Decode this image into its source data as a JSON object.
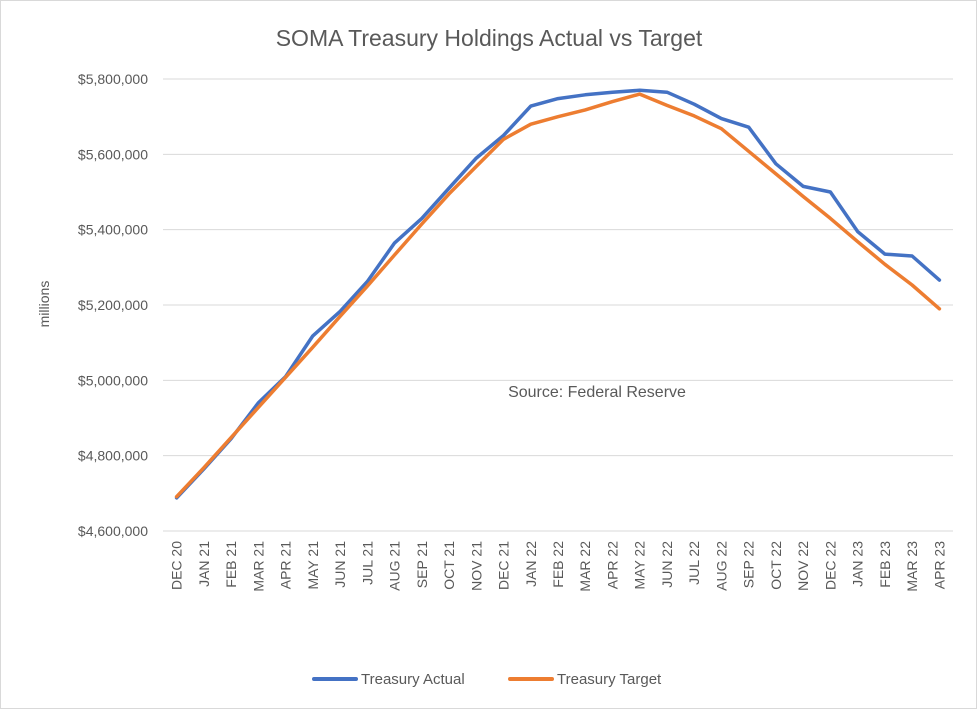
{
  "chart_data": {
    "type": "line",
    "title": "SOMA Treasury Holdings Actual vs Target",
    "xlabel": "",
    "ylabel": "millions",
    "annotation": "Source: Federal Reserve",
    "legend_position": "bottom",
    "grid": true,
    "ylim": [
      4600000,
      5800000
    ],
    "yticks": [
      4600000,
      4800000,
      5000000,
      5200000,
      5400000,
      5600000,
      5800000
    ],
    "ytick_labels": [
      "$4,600,000",
      "$4,800,000",
      "$5,000,000",
      "$5,200,000",
      "$5,400,000",
      "$5,600,000",
      "$5,800,000"
    ],
    "categories": [
      "DEC 20",
      "JAN 21",
      "FEB 21",
      "MAR 21",
      "APR 21",
      "MAY 21",
      "JUN 21",
      "JUL 21",
      "AUG 21",
      "SEP 21",
      "OCT 21",
      "NOV 21",
      "DEC 21",
      "JAN 22",
      "FEB 22",
      "MAR 22",
      "APR 22",
      "MAY 22",
      "JUN 22",
      "JUL 22",
      "AUG 22",
      "SEP 22",
      "OCT 22",
      "NOV 22",
      "DEC 22",
      "JAN 23",
      "FEB 23",
      "MAR 23",
      "APR 23"
    ],
    "series": [
      {
        "name": "Treasury Actual",
        "color": "#4472C4",
        "values": [
          4688000,
          4765000,
          4845000,
          4940000,
          5010000,
          5118000,
          5183000,
          5262000,
          5365000,
          5430000,
          5510000,
          5590000,
          5650000,
          5728000,
          5748000,
          5758000,
          5765000,
          5770000,
          5765000,
          5733000,
          5695000,
          5672000,
          5575000,
          5515000,
          5500000,
          5395000,
          5335000,
          5330000,
          5266000
        ]
      },
      {
        "name": "Treasury Target",
        "color": "#ED7D31",
        "values": [
          4691000,
          4768000,
          4848000,
          4928000,
          5008000,
          5088000,
          5170000,
          5250000,
          5333000,
          5415000,
          5495000,
          5568000,
          5640000,
          5680000,
          5700000,
          5718000,
          5740000,
          5760000,
          5730000,
          5702000,
          5668000,
          5608000,
          5548000,
          5488000,
          5430000,
          5368000,
          5308000,
          5253000,
          5190000
        ]
      }
    ]
  }
}
